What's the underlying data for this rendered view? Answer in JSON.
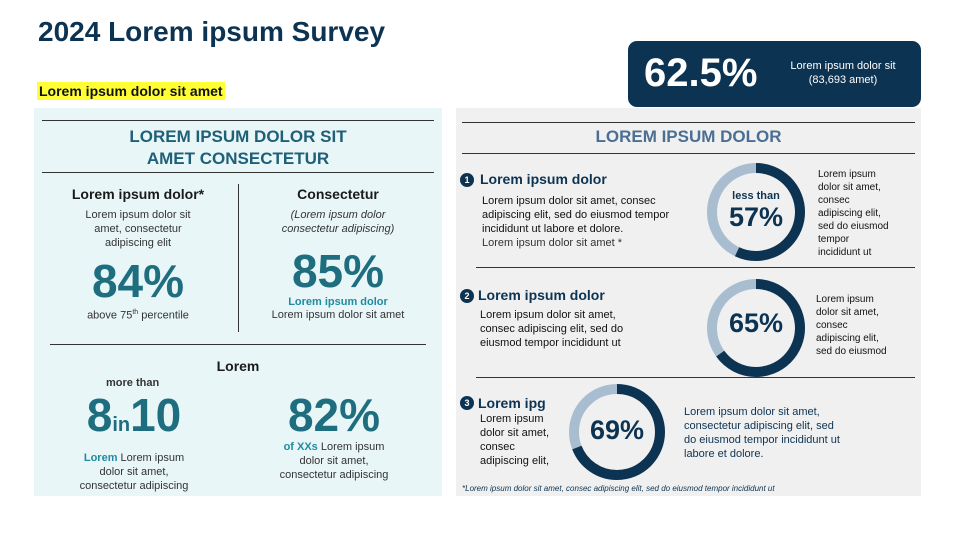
{
  "title": "2024 Lorem ipsum Survey",
  "highlight": "Lorem ipsum dolor sit amet",
  "stat_box": {
    "value": "62.5%",
    "caption_line1": "Lorem ipsum dolor sit",
    "caption_line2": "(83,693 amet)"
  },
  "left_panel": {
    "title_line1": "LOREM IPSUM DOLOR SIT",
    "title_line2": "AMET CONSECTETUR",
    "cell1": {
      "heading": "Lorem ipsum dolor*",
      "desc_line1": "Lorem ipsum dolor sit",
      "desc_line2": "amet, consectetur",
      "desc_line3": "adipiscing elit",
      "value": "84%",
      "note_pre": "above 75",
      "note_sup": "th",
      "note_post": " percentile"
    },
    "cell2": {
      "heading": "Consectetur",
      "desc_line1": "(Lorem ipsum dolor",
      "desc_line2": "consectetur adipiscing)",
      "value": "85%",
      "label": "Lorem ipsum dolor",
      "note": "Lorem ipsum dolor sit amet"
    },
    "section2_heading": "Lorem",
    "cell3": {
      "prefix": "more than",
      "value_a": "8",
      "value_in": "in",
      "value_b": "10",
      "label_bold": "Lorem",
      "desc_line1": " Lorem ipsum",
      "desc_line2": "dolor sit amet,",
      "desc_line3": "consectetur adipiscing"
    },
    "cell4": {
      "value": "82%",
      "label_bold": "of XXs",
      "desc_line1": " Lorem ipsum",
      "desc_line2": "dolor sit amet,",
      "desc_line3": "consectetur adipiscing"
    }
  },
  "right_panel": {
    "title": "LOREM IPSUM DOLOR",
    "items": [
      {
        "num": "1",
        "title": "Lorem ipsum dolor",
        "text_lines": [
          "Lorem ipsum dolor sit amet, consec",
          "adipiscing elit, sed do eiusmod tempor",
          "incididunt ut labore et dolore."
        ],
        "note": "Lorem ipsum dolor sit amet *",
        "ring_top": "less than",
        "ring_value": "57%",
        "ring_percent": 57,
        "side_lines": [
          "Lorem ipsum",
          "dolor sit amet,",
          "consec",
          "adipiscing elit,",
          "sed do eiusmod",
          "tempor",
          "incididunt ut"
        ]
      },
      {
        "num": "2",
        "title": "Lorem ipsum dolor",
        "text_lines": [
          "Lorem ipsum dolor sit amet,",
          "consec adipiscing elit, sed do",
          "eiusmod tempor incididunt ut"
        ],
        "ring_value": "65%",
        "ring_percent": 65,
        "side_lines": [
          "Lorem ipsum",
          "dolor sit amet,",
          "consec",
          "adipiscing elit,",
          "sed do eiusmod"
        ]
      },
      {
        "num": "3",
        "title": "Lorem ipg",
        "text_lines": [
          "Lorem ipsum",
          "dolor sit amet,",
          "consec",
          "adipiscing elit,"
        ],
        "ring_value": "69%",
        "ring_percent": 69,
        "blue_lines": [
          "Lorem ipsum dolor sit amet,",
          "consectetur adipiscing elit, sed",
          "do eiusmod tempor incididunt ut",
          "labore et dolore."
        ]
      }
    ],
    "footnote": "*Lorem ipsum dolor sit amet, consec adipiscing elit, sed do eiusmod tempor incididunt ut"
  },
  "colors": {
    "navy": "#0d3352",
    "teal": "#1f6e80",
    "ring_track": "#a9bdd1",
    "highlight": "#ffff33"
  }
}
